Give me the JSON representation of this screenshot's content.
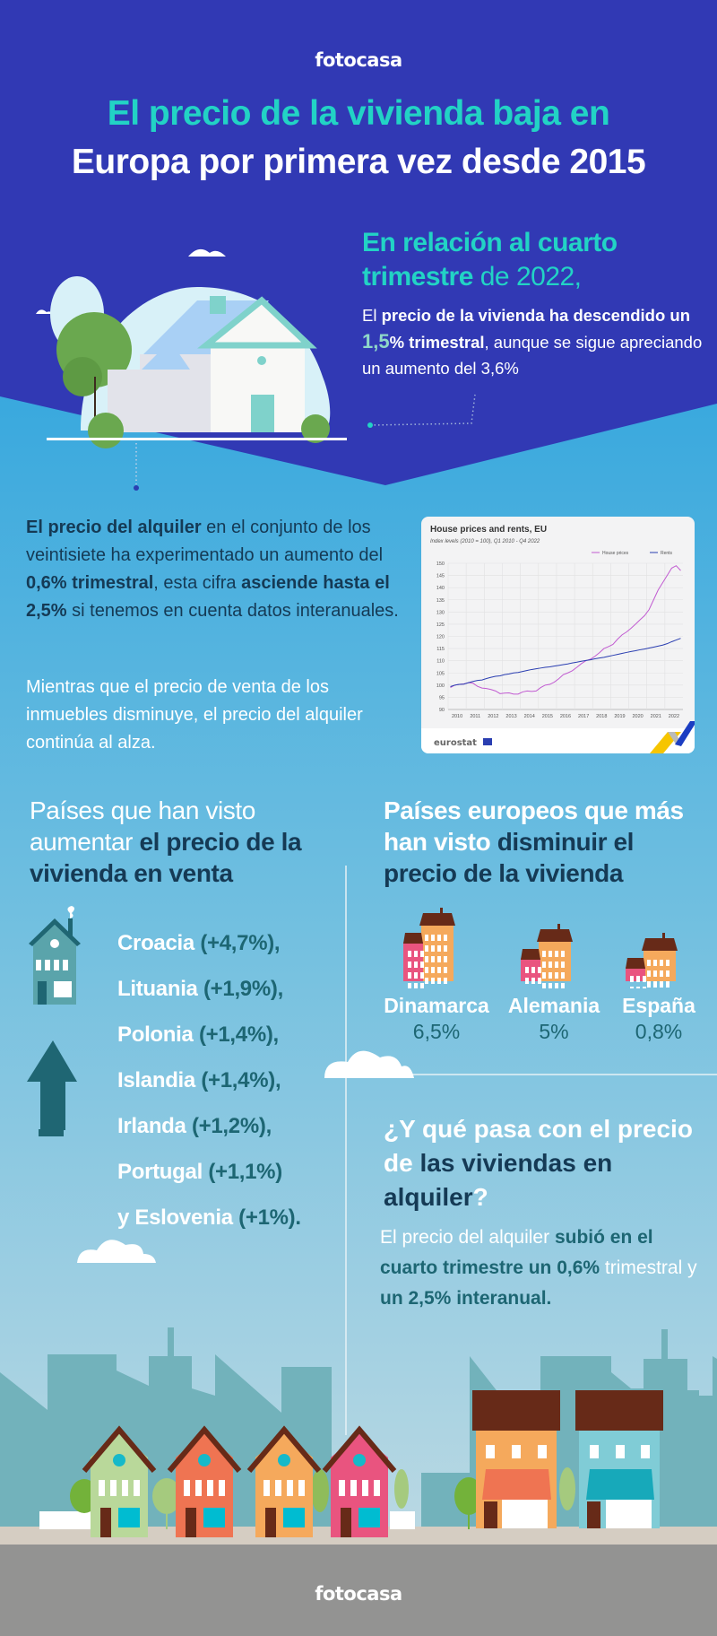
{
  "brand": {
    "logo_top": "fotocasa",
    "logo_bottom": "fotocasa"
  },
  "title": {
    "line1": "El precio de la vivienda baja en",
    "line2": "Europa por primera vez desde 2015"
  },
  "intro": {
    "heading_a": "En relación al cuarto",
    "heading_b_bold": "trimestre",
    "heading_b_rest": " de 2022,",
    "p_1": "El ",
    "p_2": "precio de la vivienda ha descendido un ",
    "p_3": "1,5",
    "p_4": "% trimestral",
    "p_5": ", aunque se sigue apreciando un aumento del 3,6%"
  },
  "rent_paragraph": {
    "a": "El precio del alquiler",
    "b": " en el conjunto de los veintisiete ha experimentado un aumento del ",
    "c": "0,6% trimestral",
    "d": ", esta cifra ",
    "e": "asciende hasta el 2,5%",
    "f": " si tenemos en cuenta datos interanuales."
  },
  "sale_paragraph": "Mientras que el precio de venta de los inmuebles disminuye, el precio del alquiler continúa al alza.",
  "chart_data": {
    "type": "line",
    "title": "House prices and rents, EU",
    "subtitle": "Index levels (2010 = 100), Q1 2010 - Q4 2022",
    "x_tick_labels": [
      "2010",
      "2011",
      "2012",
      "2013",
      "2014",
      "2015",
      "2016",
      "2017",
      "2018",
      "2019",
      "2020",
      "2021",
      "2022"
    ],
    "y_ticks": [
      90,
      95,
      100,
      105,
      110,
      115,
      120,
      125,
      130,
      135,
      140,
      145,
      150
    ],
    "ylim": [
      90,
      150
    ],
    "x_unit": "quarter, Q1 2010 to Q4 2022",
    "grid": true,
    "legend_position": "top-right",
    "source": "eurostat",
    "series": [
      {
        "name": "House prices",
        "color": "#c15bd1",
        "values": [
          99,
          100,
          100.3,
          100.5,
          101,
          100.8,
          99.5,
          98.8,
          98.6,
          98.2,
          97.6,
          96.5,
          96.7,
          96.8,
          96.3,
          96.3,
          97.2,
          97.6,
          97.4,
          97.6,
          99,
          100,
          100.3,
          101.2,
          102.6,
          104.3,
          105,
          105.9,
          107.3,
          108.8,
          110,
          110.6,
          111.8,
          113.3,
          115,
          115.8,
          116.7,
          118.8,
          120.6,
          121.8,
          123.3,
          125,
          126.8,
          128.5,
          131,
          135,
          139,
          142,
          145,
          148,
          149,
          147
        ]
      },
      {
        "name": "Rents",
        "color": "#2a3eb1",
        "values": [
          99.4,
          100,
          100.3,
          100.4,
          101,
          101.5,
          101.9,
          102.1,
          102.7,
          103.2,
          103.6,
          103.8,
          104.3,
          104.6,
          105,
          105.2,
          105.6,
          106,
          106.4,
          106.7,
          107,
          107.3,
          107.5,
          107.8,
          108.1,
          108.4,
          108.7,
          109.1,
          109.4,
          109.8,
          110.1,
          110.4,
          110.8,
          111.1,
          111.4,
          111.8,
          112.2,
          112.6,
          113,
          113.4,
          113.8,
          114.1,
          114.5,
          114.8,
          115.2,
          115.6,
          116,
          116.4,
          117,
          117.8,
          118.5,
          119.2
        ]
      }
    ]
  },
  "increase_section": {
    "heading_light": "Países que han visto aumentar ",
    "heading_bold": "el precio de la vivienda en venta",
    "countries": [
      {
        "name": "Croacia",
        "value": "(+4,7%),",
        "prefix": ""
      },
      {
        "name": "Lituania",
        "value": "(+1,9%),",
        "prefix": ""
      },
      {
        "name": "Polonia",
        "value": "(+1,4%),",
        "prefix": ""
      },
      {
        "name": "Islandia",
        "value": "(+1,4%),",
        "prefix": ""
      },
      {
        "name": "Irlanda",
        "value": "(+1,2%),",
        "prefix": ""
      },
      {
        "name": "Portugal",
        "value": "(+1,1%)",
        "prefix": ""
      },
      {
        "name": "Eslovenia",
        "value": "(+1%).",
        "prefix": "y "
      }
    ]
  },
  "decrease_section": {
    "heading_white": "Países europeos que más han visto ",
    "heading_dark": "disminuir el precio de la vivienda",
    "countries": [
      {
        "name": "Dinamarca",
        "value": "6,5%"
      },
      {
        "name": "Alemania",
        "value": "5%"
      },
      {
        "name": "España",
        "value": "0,8%"
      }
    ]
  },
  "rent_question": {
    "h_white": "¿Y qué pasa con el precio de ",
    "h_dark": "las viviendas en alquiler",
    "h_end": "?",
    "p1": "El precio del alquiler ",
    "p2": "subió en el cuarto trimestre un 0,6%",
    "p3": " trimestral y ",
    "p4": "un 2,5% interanual."
  },
  "colors": {
    "top_bg": "#3139b4",
    "accent_teal": "#22d3c5",
    "navy_text": "#153a55",
    "teal_text": "#1d6673",
    "footer_gray": "#939392"
  }
}
